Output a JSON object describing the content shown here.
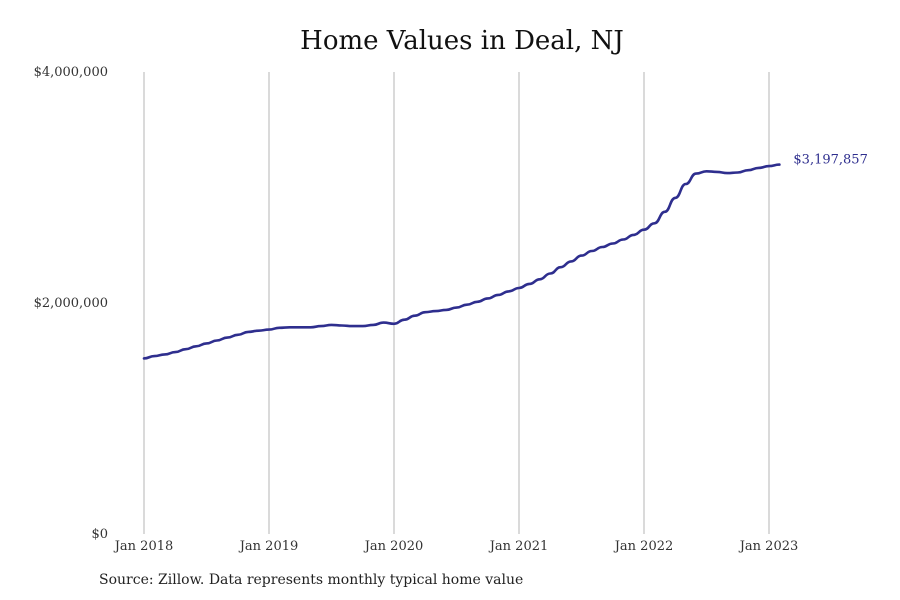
{
  "chart_data": {
    "type": "line",
    "title": "Home Values in Deal, NJ",
    "source": "Source: Zillow. Data represents monthly typical home value",
    "ylim": [
      0,
      4000000
    ],
    "y_ticks": [
      {
        "value": 0,
        "label": "$0"
      },
      {
        "value": 2000000,
        "label": "$2,000,000"
      },
      {
        "value": 4000000,
        "label": "$4,000,000"
      }
    ],
    "x_ticks": [
      "Jan 2018",
      "Jan 2019",
      "Jan 2020",
      "Jan 2021",
      "Jan 2022",
      "Jan 2023"
    ],
    "grid": "vertical",
    "line_color": "#2e2e8e",
    "end_label": "$3,197,857",
    "series": [
      {
        "x": [
          "2018-01",
          "2018-02",
          "2018-03",
          "2018-04",
          "2018-05",
          "2018-06",
          "2018-07",
          "2018-08",
          "2018-09",
          "2018-10",
          "2018-11",
          "2018-12",
          "2019-01",
          "2019-02",
          "2019-03",
          "2019-04",
          "2019-05",
          "2019-06",
          "2019-07",
          "2019-08",
          "2019-09",
          "2019-10",
          "2019-11",
          "2019-12",
          "2020-01",
          "2020-02",
          "2020-03",
          "2020-04",
          "2020-05",
          "2020-06",
          "2020-07",
          "2020-08",
          "2020-09",
          "2020-10",
          "2020-11",
          "2020-12",
          "2021-01",
          "2021-02",
          "2021-03",
          "2021-04",
          "2021-05",
          "2021-06",
          "2021-07",
          "2021-08",
          "2021-09",
          "2021-10",
          "2021-11",
          "2021-12",
          "2022-01",
          "2022-02",
          "2022-03",
          "2022-04",
          "2022-05",
          "2022-06",
          "2022-07",
          "2022-08",
          "2022-09",
          "2022-10",
          "2022-11",
          "2022-12",
          "2023-01",
          "2023-02"
        ],
        "values": [
          1520000,
          1540000,
          1555000,
          1575000,
          1600000,
          1625000,
          1650000,
          1675000,
          1700000,
          1725000,
          1750000,
          1760000,
          1770000,
          1785000,
          1790000,
          1790000,
          1790000,
          1800000,
          1810000,
          1805000,
          1800000,
          1800000,
          1810000,
          1830000,
          1820000,
          1855000,
          1890000,
          1920000,
          1930000,
          1940000,
          1960000,
          1985000,
          2010000,
          2040000,
          2070000,
          2100000,
          2130000,
          2165000,
          2205000,
          2255000,
          2310000,
          2360000,
          2410000,
          2450000,
          2485000,
          2515000,
          2550000,
          2590000,
          2635000,
          2690000,
          2790000,
          2910000,
          3030000,
          3120000,
          3140000,
          3135000,
          3125000,
          3130000,
          3150000,
          3170000,
          3185000,
          3197857
        ]
      }
    ]
  }
}
